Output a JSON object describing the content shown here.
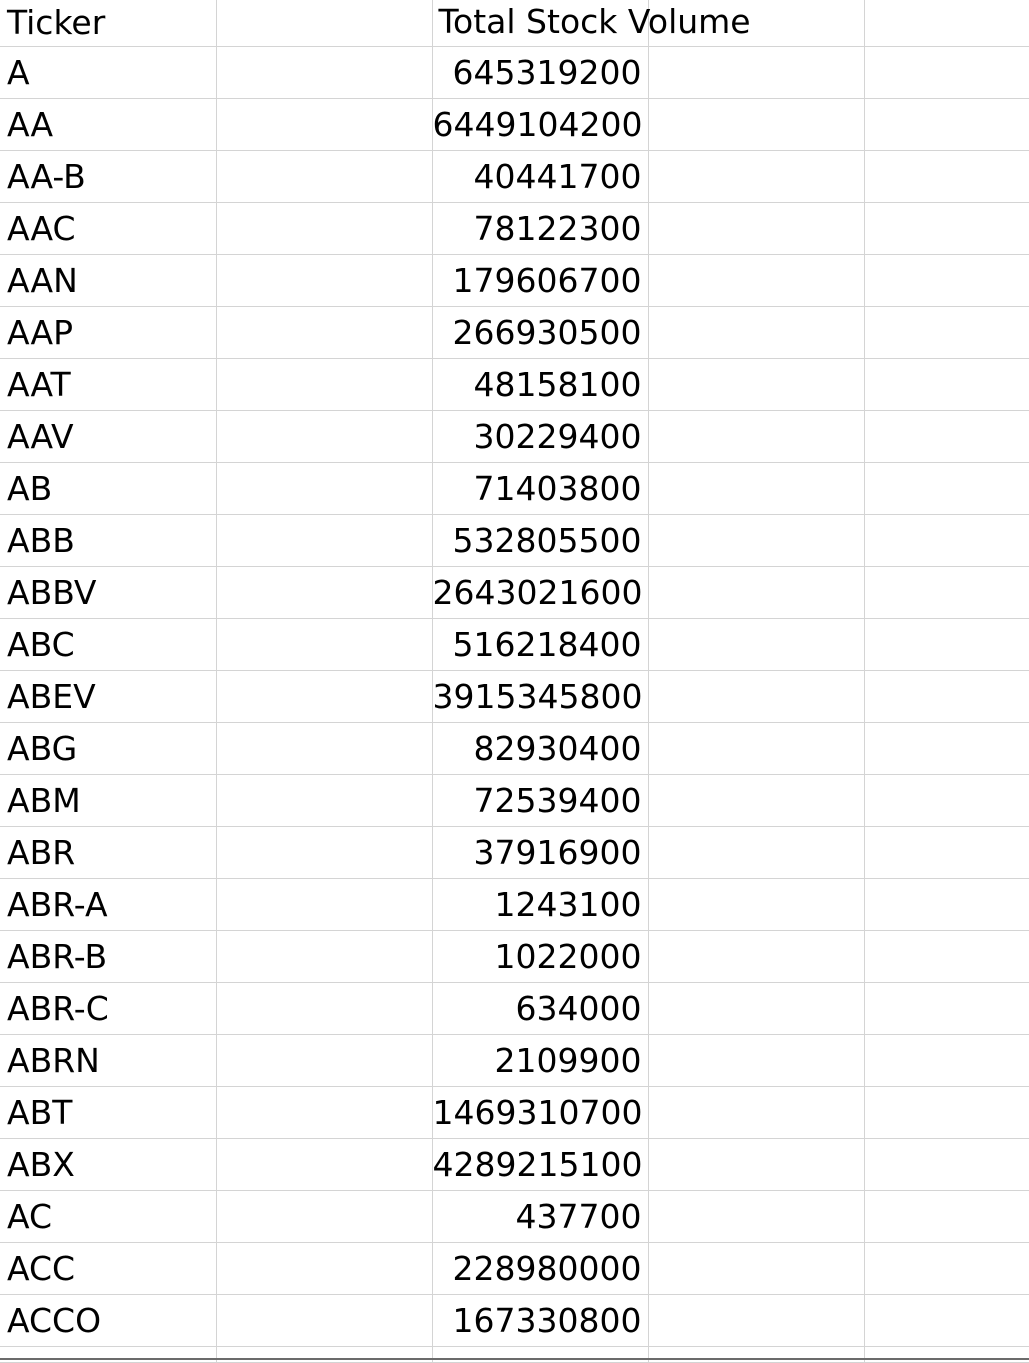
{
  "sheet": {
    "headers": {
      "ticker": "Ticker",
      "total_stock_volume": "Total Stock Volume"
    },
    "rows": [
      {
        "ticker": "A",
        "volume": "645319200"
      },
      {
        "ticker": "AA",
        "volume": "6449104200"
      },
      {
        "ticker": "AA-B",
        "volume": "40441700"
      },
      {
        "ticker": "AAC",
        "volume": "78122300"
      },
      {
        "ticker": "AAN",
        "volume": "179606700"
      },
      {
        "ticker": "AAP",
        "volume": "266930500"
      },
      {
        "ticker": "AAT",
        "volume": "48158100"
      },
      {
        "ticker": "AAV",
        "volume": "30229400"
      },
      {
        "ticker": "AB",
        "volume": "71403800"
      },
      {
        "ticker": "ABB",
        "volume": "532805500"
      },
      {
        "ticker": "ABBV",
        "volume": "2643021600"
      },
      {
        "ticker": "ABC",
        "volume": "516218400"
      },
      {
        "ticker": "ABEV",
        "volume": "3915345800"
      },
      {
        "ticker": "ABG",
        "volume": "82930400"
      },
      {
        "ticker": "ABM",
        "volume": "72539400"
      },
      {
        "ticker": "ABR",
        "volume": "37916900"
      },
      {
        "ticker": "ABR-A",
        "volume": "1243100"
      },
      {
        "ticker": "ABR-B",
        "volume": "1022000"
      },
      {
        "ticker": "ABR-C",
        "volume": "634000"
      },
      {
        "ticker": "ABRN",
        "volume": "2109900"
      },
      {
        "ticker": "ABT",
        "volume": "1469310700"
      },
      {
        "ticker": "ABX",
        "volume": "4289215100"
      },
      {
        "ticker": "AC",
        "volume": "437700"
      },
      {
        "ticker": "ACC",
        "volume": "228980000"
      },
      {
        "ticker": "ACCO",
        "volume": "167330800"
      }
    ]
  }
}
